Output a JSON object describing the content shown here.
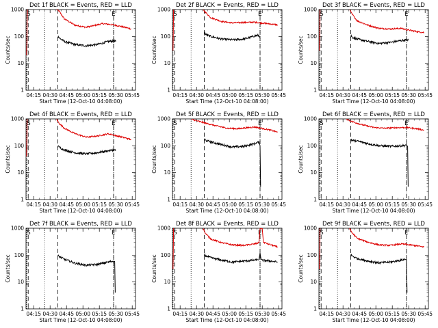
{
  "chart_data": {
    "type": "line",
    "layout": "3x3 grid of detector panels",
    "common": {
      "title_suffix": "BLACK = Events, RED = LLD",
      "xlabel": "Start Time (12-Oct-10 04:08:00)",
      "ylabel": "Counts/sec",
      "x_ticks": [
        "04:15",
        "04:30",
        "04:45",
        "05:00",
        "05:15",
        "05:30",
        "05:45"
      ],
      "x_tick_minutes": [
        7,
        22,
        37,
        52,
        67,
        82,
        97
      ],
      "xlim_minutes": [
        0,
        100
      ],
      "y_ticks": [
        "1",
        "10",
        "100",
        "1000"
      ],
      "y_tick_values": [
        1,
        10,
        100,
        1000
      ],
      "yscale": "log",
      "ylim": [
        1,
        1000
      ],
      "marker_S": "S",
      "marker_E": "E",
      "dotted_lines_minutes": [
        0.5,
        17,
        80
      ],
      "dashed_lines_minutes": [
        2,
        29,
        80
      ],
      "colors": {
        "events": "#000000",
        "lld": "#dd0000"
      }
    },
    "panels": [
      {
        "title": "Det 1f",
        "red_shape": "spike-decay",
        "red_points": [
          [
            0.5,
            20
          ],
          [
            0.8,
            60
          ],
          [
            1.0,
            400
          ],
          [
            1.3,
            1000
          ]
        ],
        "red_decay": [
          [
            28,
            1000
          ],
          [
            30,
            900
          ],
          [
            35,
            450
          ],
          [
            45,
            260
          ],
          [
            55,
            220
          ],
          [
            65,
            270
          ],
          [
            70,
            300
          ],
          [
            80,
            270
          ],
          [
            90,
            220
          ],
          [
            96,
            190
          ]
        ],
        "black": [
          [
            29,
            85
          ],
          [
            29.5,
            100
          ],
          [
            30,
            90
          ],
          [
            35,
            65
          ],
          [
            45,
            50
          ],
          [
            55,
            45
          ],
          [
            65,
            50
          ],
          [
            75,
            65
          ],
          [
            80,
            68
          ],
          [
            82,
            65
          ]
        ],
        "black_drop_to": null
      },
      {
        "title": "Det 2f",
        "red_shape": "spike-decay",
        "red_points": [
          [
            0.5,
            30
          ],
          [
            0.8,
            200
          ],
          [
            1.0,
            1000
          ]
        ],
        "red_decay": [
          [
            28,
            1000
          ],
          [
            30,
            800
          ],
          [
            35,
            500
          ],
          [
            45,
            360
          ],
          [
            55,
            320
          ],
          [
            65,
            330
          ],
          [
            75,
            340
          ],
          [
            80,
            320
          ],
          [
            90,
            290
          ],
          [
            96,
            270
          ]
        ],
        "black": [
          [
            29,
            110
          ],
          [
            29.5,
            140
          ],
          [
            30,
            120
          ],
          [
            35,
            100
          ],
          [
            45,
            80
          ],
          [
            55,
            75
          ],
          [
            65,
            80
          ],
          [
            70,
            90
          ],
          [
            75,
            105
          ],
          [
            78,
            110
          ],
          [
            80,
            100
          ]
        ],
        "black_drop_to": null
      },
      {
        "title": "Det 3f",
        "red_shape": "spike-decay",
        "red_points": [
          [
            0.5,
            30
          ],
          [
            0.8,
            200
          ],
          [
            1.0,
            1000
          ]
        ],
        "red_decay": [
          [
            28,
            1000
          ],
          [
            30,
            700
          ],
          [
            35,
            380
          ],
          [
            45,
            260
          ],
          [
            55,
            200
          ],
          [
            65,
            190
          ],
          [
            75,
            200
          ],
          [
            80,
            180
          ],
          [
            90,
            150
          ],
          [
            96,
            140
          ]
        ],
        "black": [
          [
            29,
            90
          ],
          [
            29.5,
            110
          ],
          [
            30,
            95
          ],
          [
            35,
            80
          ],
          [
            45,
            65
          ],
          [
            55,
            55
          ],
          [
            65,
            60
          ],
          [
            75,
            70
          ],
          [
            80,
            75
          ],
          [
            82,
            72
          ]
        ],
        "black_drop_to": null
      },
      {
        "title": "Det 4f",
        "red_shape": "spike-decay",
        "red_points": [
          [
            0.5,
            40
          ],
          [
            0.8,
            200
          ],
          [
            1.0,
            1000
          ]
        ],
        "red_decay": [
          [
            28,
            1000
          ],
          [
            30,
            700
          ],
          [
            35,
            450
          ],
          [
            45,
            280
          ],
          [
            55,
            210
          ],
          [
            65,
            230
          ],
          [
            75,
            280
          ],
          [
            80,
            250
          ],
          [
            90,
            200
          ],
          [
            96,
            170
          ]
        ],
        "black": [
          [
            29,
            85
          ],
          [
            29.5,
            100
          ],
          [
            30,
            90
          ],
          [
            35,
            70
          ],
          [
            45,
            55
          ],
          [
            55,
            50
          ],
          [
            65,
            55
          ],
          [
            75,
            65
          ],
          [
            80,
            70
          ],
          [
            82,
            68
          ]
        ],
        "black_drop_to": null
      },
      {
        "title": "Det 5f",
        "red_shape": "decay-only",
        "red_points": [],
        "red_decay": [
          [
            17,
            1000
          ],
          [
            20,
            900
          ],
          [
            30,
            700
          ],
          [
            40,
            550
          ],
          [
            50,
            450
          ],
          [
            60,
            430
          ],
          [
            70,
            480
          ],
          [
            75,
            500
          ],
          [
            80,
            460
          ],
          [
            90,
            380
          ],
          [
            96,
            320
          ]
        ],
        "black": [
          [
            29,
            150
          ],
          [
            29.5,
            180
          ],
          [
            30,
            160
          ],
          [
            35,
            140
          ],
          [
            45,
            110
          ],
          [
            55,
            90
          ],
          [
            65,
            95
          ],
          [
            75,
            120
          ],
          [
            79,
            140
          ],
          [
            80,
            100
          ],
          [
            80.5,
            3
          ]
        ],
        "black_drop_to": 3
      },
      {
        "title": "Det 6f",
        "red_shape": "decay-only",
        "red_points": [],
        "red_decay": [
          [
            25,
            1000
          ],
          [
            30,
            800
          ],
          [
            40,
            600
          ],
          [
            50,
            480
          ],
          [
            60,
            450
          ],
          [
            70,
            470
          ],
          [
            80,
            480
          ],
          [
            90,
            430
          ],
          [
            96,
            380
          ]
        ],
        "black": [
          [
            29,
            150
          ],
          [
            29.5,
            180
          ],
          [
            30,
            160
          ],
          [
            35,
            150
          ],
          [
            45,
            120
          ],
          [
            55,
            100
          ],
          [
            65,
            95
          ],
          [
            75,
            100
          ],
          [
            80,
            105
          ],
          [
            81,
            95
          ],
          [
            81.5,
            3
          ]
        ],
        "black_drop_to": 3
      },
      {
        "title": "Det 7f",
        "red_shape": "none",
        "red_points": [],
        "red_decay": [],
        "black": [
          [
            29,
            90
          ],
          [
            29.5,
            100
          ],
          [
            30,
            90
          ],
          [
            35,
            70
          ],
          [
            45,
            50
          ],
          [
            55,
            42
          ],
          [
            65,
            45
          ],
          [
            75,
            55
          ],
          [
            80,
            60
          ],
          [
            81,
            58
          ],
          [
            81.5,
            4
          ]
        ],
        "black_drop_to": 4
      },
      {
        "title": "Det 8f",
        "red_shape": "spike-decay-with-bump",
        "red_points": [
          [
            0.5,
            30
          ],
          [
            0.8,
            200
          ],
          [
            1.0,
            1000
          ]
        ],
        "red_decay": [
          [
            28,
            1000
          ],
          [
            30,
            650
          ],
          [
            35,
            400
          ],
          [
            45,
            290
          ],
          [
            55,
            240
          ],
          [
            65,
            230
          ],
          [
            75,
            260
          ],
          [
            79,
            290
          ],
          [
            80,
            1000
          ],
          [
            82,
            1000
          ],
          [
            83,
            300
          ],
          [
            90,
            240
          ],
          [
            96,
            200
          ]
        ],
        "black": [
          [
            29,
            90
          ],
          [
            29.5,
            110
          ],
          [
            30,
            95
          ],
          [
            35,
            80
          ],
          [
            45,
            65
          ],
          [
            55,
            55
          ],
          [
            65,
            60
          ],
          [
            75,
            65
          ],
          [
            79,
            70
          ],
          [
            80,
            120
          ],
          [
            81,
            65
          ],
          [
            90,
            60
          ],
          [
            96,
            55
          ]
        ],
        "black_drop_to": null
      },
      {
        "title": "Det 9f",
        "red_shape": "spike-decay",
        "red_points": [
          [
            0.5,
            30
          ],
          [
            0.8,
            200
          ],
          [
            1.0,
            1000
          ]
        ],
        "red_decay": [
          [
            28,
            1000
          ],
          [
            30,
            700
          ],
          [
            35,
            420
          ],
          [
            45,
            300
          ],
          [
            55,
            240
          ],
          [
            65,
            230
          ],
          [
            75,
            260
          ],
          [
            80,
            250
          ],
          [
            90,
            220
          ],
          [
            96,
            200
          ]
        ],
        "black": [
          [
            29,
            90
          ],
          [
            29.5,
            110
          ],
          [
            30,
            95
          ],
          [
            35,
            75
          ],
          [
            45,
            60
          ],
          [
            55,
            52
          ],
          [
            65,
            55
          ],
          [
            75,
            65
          ],
          [
            79,
            70
          ],
          [
            80,
            65
          ],
          [
            80.5,
            4
          ]
        ],
        "black_drop_to": 4
      }
    ]
  }
}
